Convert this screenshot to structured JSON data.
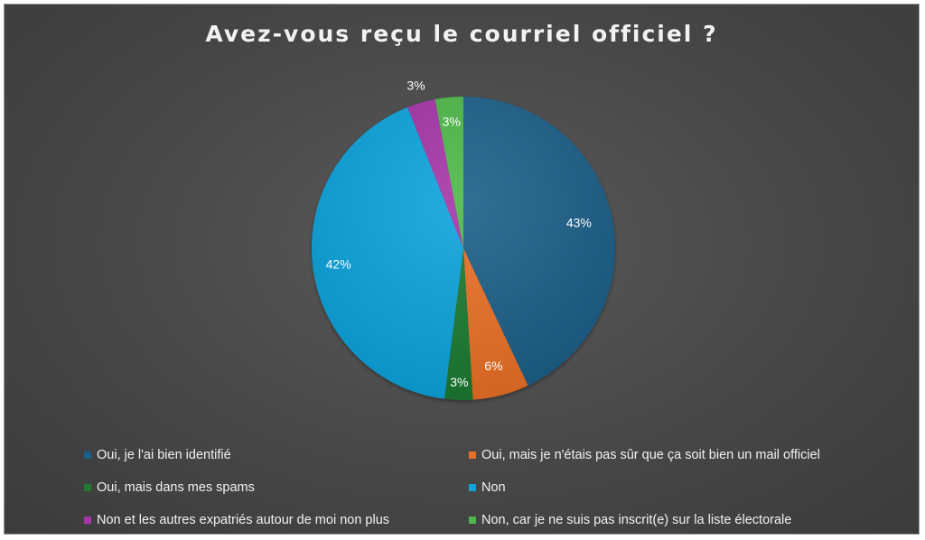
{
  "chart_data": {
    "type": "pie",
    "title": "Avez-vous reçu le courriel officiel ?",
    "categories": [
      "Oui, je l'ai bien identifié",
      "Oui, mais je n'étais pas sûr que ça soit bien un mail officiel",
      "Oui, mais dans mes spams",
      "Non",
      "Non et les autres expatriés autour de moi non plus",
      "Non, car je ne suis pas inscrit(e) sur la liste électorale"
    ],
    "values": [
      43,
      6,
      3,
      42,
      3,
      3
    ],
    "labels": [
      "43%",
      "6%",
      "3%",
      "42%",
      "3%",
      "3%"
    ],
    "colors": [
      "#1a5f88",
      "#ea6f25",
      "#1f7a33",
      "#0ea3dc",
      "#a636a8",
      "#4db848"
    ],
    "legend": "bottom"
  }
}
